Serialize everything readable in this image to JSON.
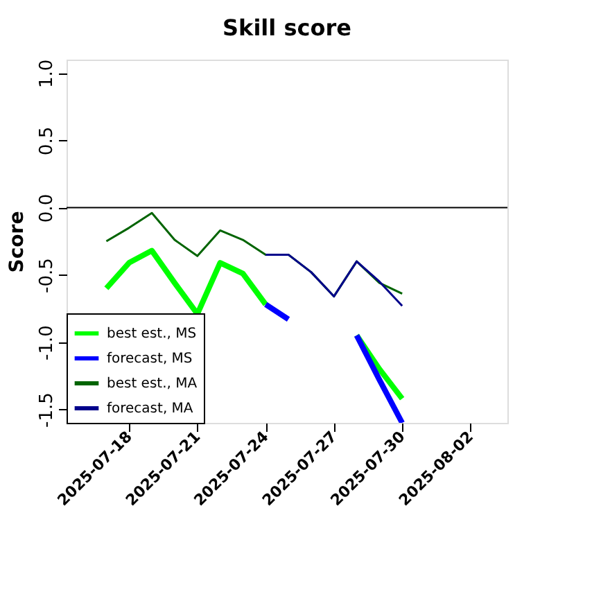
{
  "chart_data": {
    "type": "line",
    "title": "Skill score",
    "ylabel": "Score",
    "xlim": [
      "2025-07-15T06:00",
      "2025-08-03T15:00"
    ],
    "xticks": [
      "2025-07-18",
      "2025-07-21",
      "2025-07-24",
      "2025-07-27",
      "2025-07-30",
      "2025-08-02"
    ],
    "ylim": [
      -1.6,
      1.1
    ],
    "yticks": [
      {
        "value": -1.5,
        "label": "-1.5"
      },
      {
        "value": -1.0,
        "label": "-1.0"
      },
      {
        "value": -0.5,
        "label": "-0.5"
      },
      {
        "value": 0.0,
        "label": "0.0"
      },
      {
        "value": 0.5,
        "label": "0.5"
      },
      {
        "value": 1.0,
        "label": "1.0"
      }
    ],
    "ref_lines": [
      {
        "axis": "y",
        "value": 0,
        "color": "#000000"
      }
    ],
    "legend": "bottom left",
    "grid": false,
    "marker": "none",
    "series": [
      {
        "name": "best est., MS",
        "color": "#00ff00",
        "x": [
          "2025-07-17",
          "2025-07-18",
          "2025-07-19",
          "2025-07-20",
          "2025-07-21",
          "2025-07-22",
          "2025-07-23",
          "2025-07-24",
          "2025-07-25",
          "2025-07-26",
          "2025-07-27",
          "2025-07-28",
          "2025-07-29",
          "2025-07-30"
        ],
        "values": [
          -0.6,
          -0.41,
          -0.32,
          -0.56,
          -0.79,
          -0.41,
          -0.49,
          -0.72,
          null,
          null,
          null,
          -0.95,
          -1.2,
          -1.42
        ]
      },
      {
        "name": "forecast, MS",
        "color": "#0000ff",
        "x": [
          "2025-07-24",
          "2025-07-25",
          "2025-07-26",
          "2025-07-27",
          "2025-07-28",
          "2025-07-29",
          "2025-07-30"
        ],
        "values": [
          -0.72,
          -0.83,
          null,
          null,
          -0.95,
          -1.28,
          -1.6
        ]
      },
      {
        "name": "best est., MA",
        "color": "#006400",
        "x": [
          "2025-07-17",
          "2025-07-18",
          "2025-07-19",
          "2025-07-20",
          "2025-07-21",
          "2025-07-22",
          "2025-07-23",
          "2025-07-24",
          "2025-07-25",
          "2025-07-26",
          "2025-07-27",
          "2025-07-28",
          "2025-07-29",
          "2025-07-30"
        ],
        "values": [
          -0.25,
          -0.15,
          -0.04,
          -0.24,
          -0.36,
          -0.17,
          -0.24,
          -0.35,
          -0.35,
          -0.48,
          -0.66,
          -0.4,
          -0.56,
          -0.64
        ]
      },
      {
        "name": "forecast, MA",
        "color": "#00008b",
        "x": [
          "2025-07-24",
          "2025-07-25",
          "2025-07-26",
          "2025-07-27",
          "2025-07-28",
          "2025-07-29",
          "2025-07-30"
        ],
        "values": [
          -0.35,
          -0.35,
          -0.48,
          -0.66,
          -0.4,
          -0.55,
          -0.73
        ]
      }
    ]
  }
}
